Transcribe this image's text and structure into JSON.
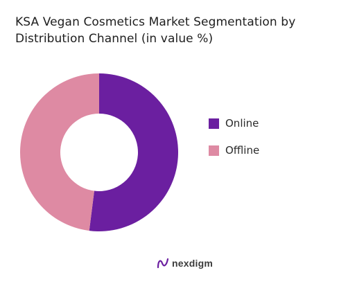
{
  "brand": {
    "name": "nexdigm",
    "accent": "#6b1fa0"
  },
  "chart_data": {
    "type": "pie",
    "title": "KSA Vegan Cosmetics Market Segmentation by Distribution Channel (in value %)",
    "donut": true,
    "legend_position": "right",
    "categories": [
      "Online",
      "Offline"
    ],
    "values": [
      52,
      48
    ],
    "colors": [
      "#6b1fa0",
      "#de8aa3"
    ]
  }
}
